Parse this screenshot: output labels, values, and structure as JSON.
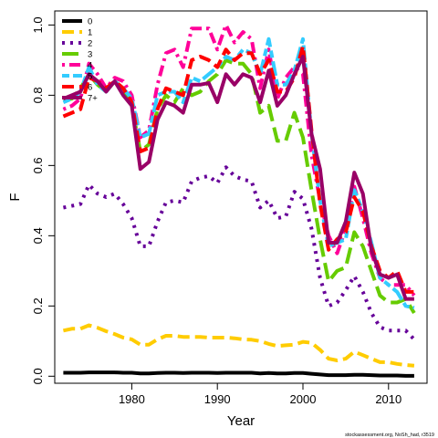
{
  "chart_data": {
    "type": "line",
    "xlabel": "Year",
    "ylabel": "F",
    "xlim": [
      1971,
      2014.5
    ],
    "ylim": [
      -0.02,
      1.04
    ],
    "xticks": [
      1980,
      1990,
      2000,
      2010
    ],
    "yticks": [
      "0.0",
      "0.2",
      "0.4",
      "0.6",
      "0.8",
      "1.0"
    ],
    "ytick_values": [
      0.0,
      0.2,
      0.4,
      0.6,
      0.8,
      1.0
    ],
    "legend_position": "top-left",
    "footer": "stockassessment.org, NoSh_had, r3519",
    "x": [
      1972,
      1973,
      1974,
      1975,
      1976,
      1977,
      1978,
      1979,
      1980,
      1981,
      1982,
      1983,
      1984,
      1985,
      1986,
      1987,
      1988,
      1989,
      1990,
      1991,
      1992,
      1993,
      1994,
      1995,
      1996,
      1997,
      1998,
      1999,
      2000,
      2001,
      2002,
      2003,
      2004,
      2005,
      2006,
      2007,
      2008,
      2009,
      2010,
      2011,
      2012,
      2013
    ],
    "series": [
      {
        "name": "0",
        "color": "#000000",
        "dash": "solid",
        "values": [
          0.01,
          0.01,
          0.01,
          0.011,
          0.011,
          0.011,
          0.011,
          0.01,
          0.01,
          0.008,
          0.008,
          0.009,
          0.01,
          0.01,
          0.009,
          0.01,
          0.01,
          0.01,
          0.009,
          0.01,
          0.01,
          0.01,
          0.01,
          0.008,
          0.009,
          0.008,
          0.008,
          0.009,
          0.009,
          0.007,
          0.005,
          0.003,
          0.003,
          0.003,
          0.004,
          0.004,
          0.003,
          0.002,
          0.002,
          0.002,
          0.001,
          0.001
        ]
      },
      {
        "name": "1",
        "color": "#ffcc00",
        "dash": "dash",
        "values": [
          0.13,
          0.135,
          0.135,
          0.145,
          0.138,
          0.128,
          0.12,
          0.11,
          0.105,
          0.09,
          0.09,
          0.105,
          0.115,
          0.115,
          0.112,
          0.112,
          0.112,
          0.11,
          0.11,
          0.11,
          0.108,
          0.105,
          0.104,
          0.1,
          0.092,
          0.086,
          0.088,
          0.09,
          0.098,
          0.095,
          0.075,
          0.05,
          0.045,
          0.05,
          0.07,
          0.06,
          0.05,
          0.04,
          0.04,
          0.035,
          0.032,
          0.03
        ]
      },
      {
        "name": "2",
        "color": "#660099",
        "dash": "dot",
        "values": [
          0.48,
          0.485,
          0.49,
          0.545,
          0.52,
          0.51,
          0.52,
          0.49,
          0.45,
          0.37,
          0.37,
          0.44,
          0.495,
          0.5,
          0.495,
          0.555,
          0.565,
          0.57,
          0.55,
          0.595,
          0.57,
          0.56,
          0.555,
          0.48,
          0.5,
          0.45,
          0.455,
          0.525,
          0.505,
          0.42,
          0.28,
          0.2,
          0.21,
          0.245,
          0.285,
          0.24,
          0.18,
          0.14,
          0.13,
          0.13,
          0.13,
          0.105
        ]
      },
      {
        "name": "3",
        "color": "#66cc00",
        "dash": "longdash",
        "values": [
          0.79,
          0.79,
          0.82,
          0.86,
          0.83,
          0.81,
          0.84,
          0.82,
          0.77,
          0.64,
          0.66,
          0.76,
          0.8,
          0.78,
          0.82,
          0.8,
          0.81,
          0.84,
          0.86,
          0.9,
          0.89,
          0.89,
          0.86,
          0.75,
          0.77,
          0.67,
          0.67,
          0.75,
          0.68,
          0.53,
          0.39,
          0.27,
          0.3,
          0.31,
          0.41,
          0.37,
          0.3,
          0.23,
          0.21,
          0.21,
          0.22,
          0.18
        ]
      },
      {
        "name": "4",
        "color": "#ff0099",
        "dash": "dotdash",
        "values": [
          0.76,
          0.77,
          0.79,
          0.89,
          0.86,
          0.82,
          0.85,
          0.84,
          0.8,
          0.68,
          0.7,
          0.83,
          0.92,
          0.93,
          0.88,
          0.99,
          0.99,
          0.99,
          0.93,
          1.0,
          0.95,
          0.98,
          0.96,
          0.82,
          0.93,
          0.79,
          0.85,
          0.88,
          0.86,
          0.63,
          0.5,
          0.4,
          0.35,
          0.42,
          0.54,
          0.45,
          0.35,
          0.28,
          0.26,
          0.26,
          0.26,
          0.23
        ]
      },
      {
        "name": "5",
        "color": "#33ccff",
        "dash": "twodash",
        "values": [
          0.78,
          0.79,
          0.81,
          0.88,
          0.83,
          0.81,
          0.84,
          0.82,
          0.79,
          0.68,
          0.69,
          0.8,
          0.81,
          0.81,
          0.78,
          0.85,
          0.84,
          0.86,
          0.88,
          0.91,
          0.9,
          0.93,
          0.92,
          0.86,
          0.96,
          0.83,
          0.83,
          0.87,
          0.96,
          0.69,
          0.5,
          0.37,
          0.38,
          0.39,
          0.53,
          0.47,
          0.38,
          0.28,
          0.26,
          0.24,
          0.2,
          0.195
        ]
      },
      {
        "name": "6",
        "color": "#ff0000",
        "dash": "dash",
        "values": [
          0.74,
          0.75,
          0.76,
          0.85,
          0.84,
          0.82,
          0.84,
          0.82,
          0.78,
          0.64,
          0.65,
          0.76,
          0.82,
          0.81,
          0.8,
          0.9,
          0.91,
          0.9,
          0.88,
          0.93,
          0.9,
          0.92,
          0.92,
          0.86,
          0.9,
          0.81,
          0.81,
          0.85,
          0.94,
          0.7,
          0.49,
          0.36,
          0.39,
          0.41,
          0.51,
          0.47,
          0.37,
          0.3,
          0.28,
          0.3,
          0.24,
          0.24
        ]
      },
      {
        "name": "7+",
        "color": "#990066",
        "dash": "solid",
        "values": [
          0.79,
          0.8,
          0.81,
          0.86,
          0.84,
          0.81,
          0.84,
          0.8,
          0.77,
          0.59,
          0.61,
          0.73,
          0.78,
          0.77,
          0.75,
          0.83,
          0.83,
          0.835,
          0.78,
          0.86,
          0.83,
          0.86,
          0.85,
          0.78,
          0.87,
          0.77,
          0.8,
          0.86,
          0.91,
          0.69,
          0.59,
          0.38,
          0.38,
          0.44,
          0.58,
          0.52,
          0.36,
          0.29,
          0.28,
          0.29,
          0.22,
          0.22
        ]
      }
    ]
  }
}
